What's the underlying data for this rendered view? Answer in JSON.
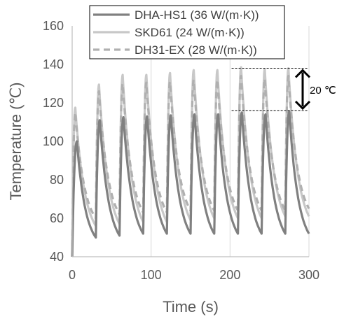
{
  "chart_data": {
    "type": "line",
    "xlabel": "Time (s)",
    "ylabel": "Temperature (℃)",
    "xlim": [
      0,
      300
    ],
    "ylim": [
      40,
      160
    ],
    "xticks": [
      "0",
      "100",
      "200",
      "300"
    ],
    "yticks": [
      "40",
      "60",
      "80",
      "100",
      "120",
      "140",
      "160"
    ],
    "grid": "vertical",
    "legend_position": "top",
    "cycle_period_s": 30,
    "series": [
      {
        "name": "DHA-HS1 (36 W/(m·K))",
        "color": "#808080",
        "style": "solid",
        "minimums": [
          40,
          50,
          51,
          52,
          52,
          52,
          52,
          52,
          52,
          52,
          52
        ],
        "peaks": [
          {
            "x": 6,
            "y": 100
          },
          {
            "x": 35,
            "y": 111
          },
          {
            "x": 65,
            "y": 112.5
          },
          {
            "x": 95,
            "y": 113
          },
          {
            "x": 125,
            "y": 113.5
          },
          {
            "x": 155,
            "y": 114
          },
          {
            "x": 185,
            "y": 114
          },
          {
            "x": 215,
            "y": 115
          },
          {
            "x": 245,
            "y": 114
          },
          {
            "x": 275,
            "y": 115.5
          }
        ]
      },
      {
        "name": "SKD61 (24 W/(m·K))",
        "color": "#c8c8c8",
        "style": "solid",
        "minimums": [
          40,
          56,
          57,
          58,
          58,
          59,
          60,
          60,
          60,
          61,
          61
        ],
        "peaks": [
          {
            "x": 4,
            "y": 117.5
          },
          {
            "x": 34,
            "y": 129.5
          },
          {
            "x": 64,
            "y": 134.5
          },
          {
            "x": 94,
            "y": 134.5
          },
          {
            "x": 124,
            "y": 135.5
          },
          {
            "x": 154,
            "y": 137
          },
          {
            "x": 184,
            "y": 137
          },
          {
            "x": 214,
            "y": 138.5
          },
          {
            "x": 244,
            "y": 137.5
          },
          {
            "x": 274,
            "y": 138
          }
        ]
      },
      {
        "name": "DH31-EX  (28 W/(m·K))",
        "color": "#b0b0b0",
        "style": "dashed",
        "minimums": [
          40,
          60,
          62,
          63,
          63,
          64,
          64,
          64,
          64,
          64,
          65
        ],
        "peaks": [
          {
            "x": 4,
            "y": 115
          },
          {
            "x": 34,
            "y": 126
          },
          {
            "x": 64,
            "y": 130
          },
          {
            "x": 94,
            "y": 130.5
          },
          {
            "x": 124,
            "y": 131
          },
          {
            "x": 154,
            "y": 132
          },
          {
            "x": 184,
            "y": 132
          },
          {
            "x": 214,
            "y": 134
          },
          {
            "x": 244,
            "y": 132.5
          },
          {
            "x": 274,
            "y": 134
          }
        ]
      }
    ],
    "annotation": {
      "label": "20 ℃",
      "x_range": [
        202,
        298
      ],
      "y_top": 138,
      "y_bottom": 116
    }
  }
}
